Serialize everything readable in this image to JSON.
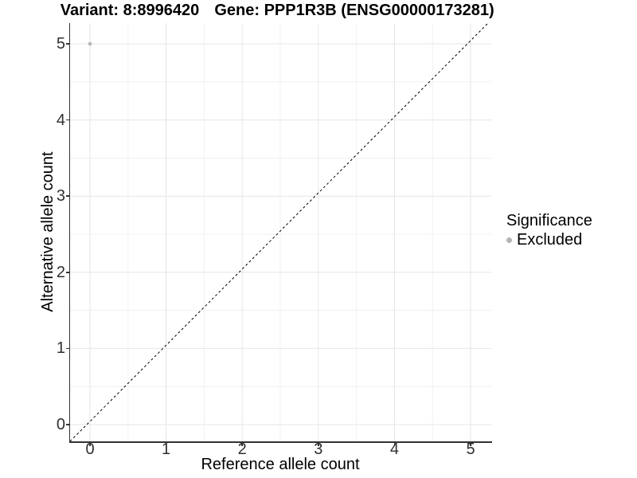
{
  "chart_data": {
    "type": "scatter",
    "titles": {
      "left": "Variant: 8:8996420",
      "right": "Gene: PPP1R3B (ENSG00000173281)"
    },
    "xlabel": "Reference allele count",
    "ylabel": "Alternative allele count",
    "x_ticks": [
      0,
      1,
      2,
      3,
      4,
      5
    ],
    "y_ticks": [
      0,
      1,
      2,
      3,
      4,
      5
    ],
    "xlim": [
      -0.27,
      5.27
    ],
    "ylim": [
      -0.22,
      5.27
    ],
    "grid": {
      "major": true,
      "minor": true,
      "major_color": "#e6e6e6",
      "minor_color": "#f1f1f1"
    },
    "series": [
      {
        "name": "Excluded",
        "color": "#b5b5b5",
        "marker": "circle",
        "points": [
          {
            "x": 0,
            "y": 5
          }
        ]
      }
    ],
    "reference_line": {
      "kind": "abline",
      "slope": 1,
      "intercept": 0,
      "linestyle": "dashed",
      "color": "#000000"
    },
    "legend": {
      "title": "Significance",
      "position": "right",
      "entries": [
        {
          "label": "Excluded",
          "color": "#b5b5b5",
          "marker": "circle"
        }
      ]
    },
    "colors": {
      "axis_line": "#333333",
      "tick_text": "#303030",
      "title_text": "#000000"
    }
  }
}
